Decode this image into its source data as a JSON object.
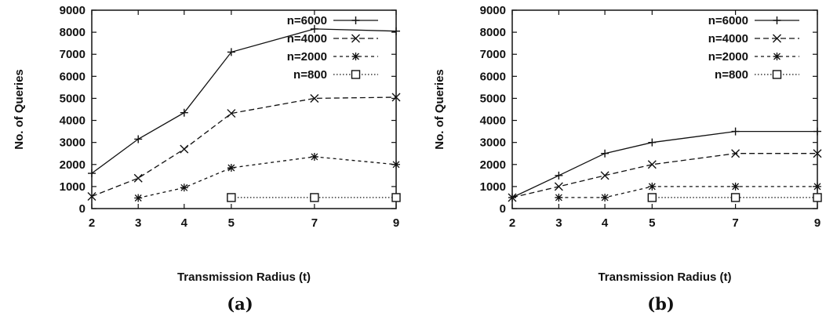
{
  "chart_data": [
    {
      "type": "line",
      "caption": "(a)",
      "xlabel": "Transmission Radius (t)",
      "ylabel": "No. of Queries",
      "x_ticks": [
        2,
        3,
        4,
        5,
        7,
        9
      ],
      "y_ticks": [
        0,
        1000,
        2000,
        3000,
        4000,
        5000,
        6000,
        7000,
        8000,
        9000
      ],
      "ylim": [
        0,
        9000
      ],
      "grid": false,
      "legend_position": "top-right",
      "series": [
        {
          "name": "n=6000",
          "marker": "plus",
          "dash": "solid",
          "x": [
            2,
            3,
            4,
            5,
            7,
            9
          ],
          "y": [
            1600,
            3150,
            4350,
            7100,
            8150,
            8050
          ]
        },
        {
          "name": "n=4000",
          "marker": "x",
          "dash": "dashed",
          "x": [
            2,
            3,
            4,
            5,
            7,
            9
          ],
          "y": [
            550,
            1380,
            2700,
            4320,
            5000,
            5050
          ]
        },
        {
          "name": "n=2000",
          "marker": "star",
          "dash": "dashed-short",
          "x": [
            3,
            4,
            5,
            7,
            9
          ],
          "y": [
            480,
            950,
            1850,
            2350,
            2000
          ]
        },
        {
          "name": "n=800",
          "marker": "square",
          "dash": "dotted",
          "x": [
            5,
            7,
            9
          ],
          "y": [
            500,
            500,
            500
          ]
        }
      ]
    },
    {
      "type": "line",
      "caption": "(b)",
      "xlabel": "Transmission Radius (t)",
      "ylabel": "No. of Queries",
      "x_ticks": [
        2,
        3,
        4,
        5,
        7,
        9
      ],
      "y_ticks": [
        0,
        1000,
        2000,
        3000,
        4000,
        5000,
        6000,
        7000,
        8000,
        9000
      ],
      "ylim": [
        0,
        9000
      ],
      "grid": false,
      "legend_position": "top-right",
      "series": [
        {
          "name": "n=6000",
          "marker": "plus",
          "dash": "solid",
          "x": [
            2,
            3,
            4,
            5,
            7,
            9
          ],
          "y": [
            500,
            1500,
            2500,
            3000,
            3500,
            3500
          ]
        },
        {
          "name": "n=4000",
          "marker": "x",
          "dash": "dashed",
          "x": [
            2,
            3,
            4,
            5,
            7,
            9
          ],
          "y": [
            500,
            1000,
            1500,
            2000,
            2500,
            2500
          ]
        },
        {
          "name": "n=2000",
          "marker": "star",
          "dash": "dashed-short",
          "x": [
            3,
            4,
            5,
            7,
            9
          ],
          "y": [
            500,
            500,
            1000,
            1000,
            1000
          ]
        },
        {
          "name": "n=800",
          "marker": "square",
          "dash": "dotted",
          "x": [
            5,
            7,
            9
          ],
          "y": [
            500,
            500,
            500
          ]
        }
      ]
    }
  ]
}
